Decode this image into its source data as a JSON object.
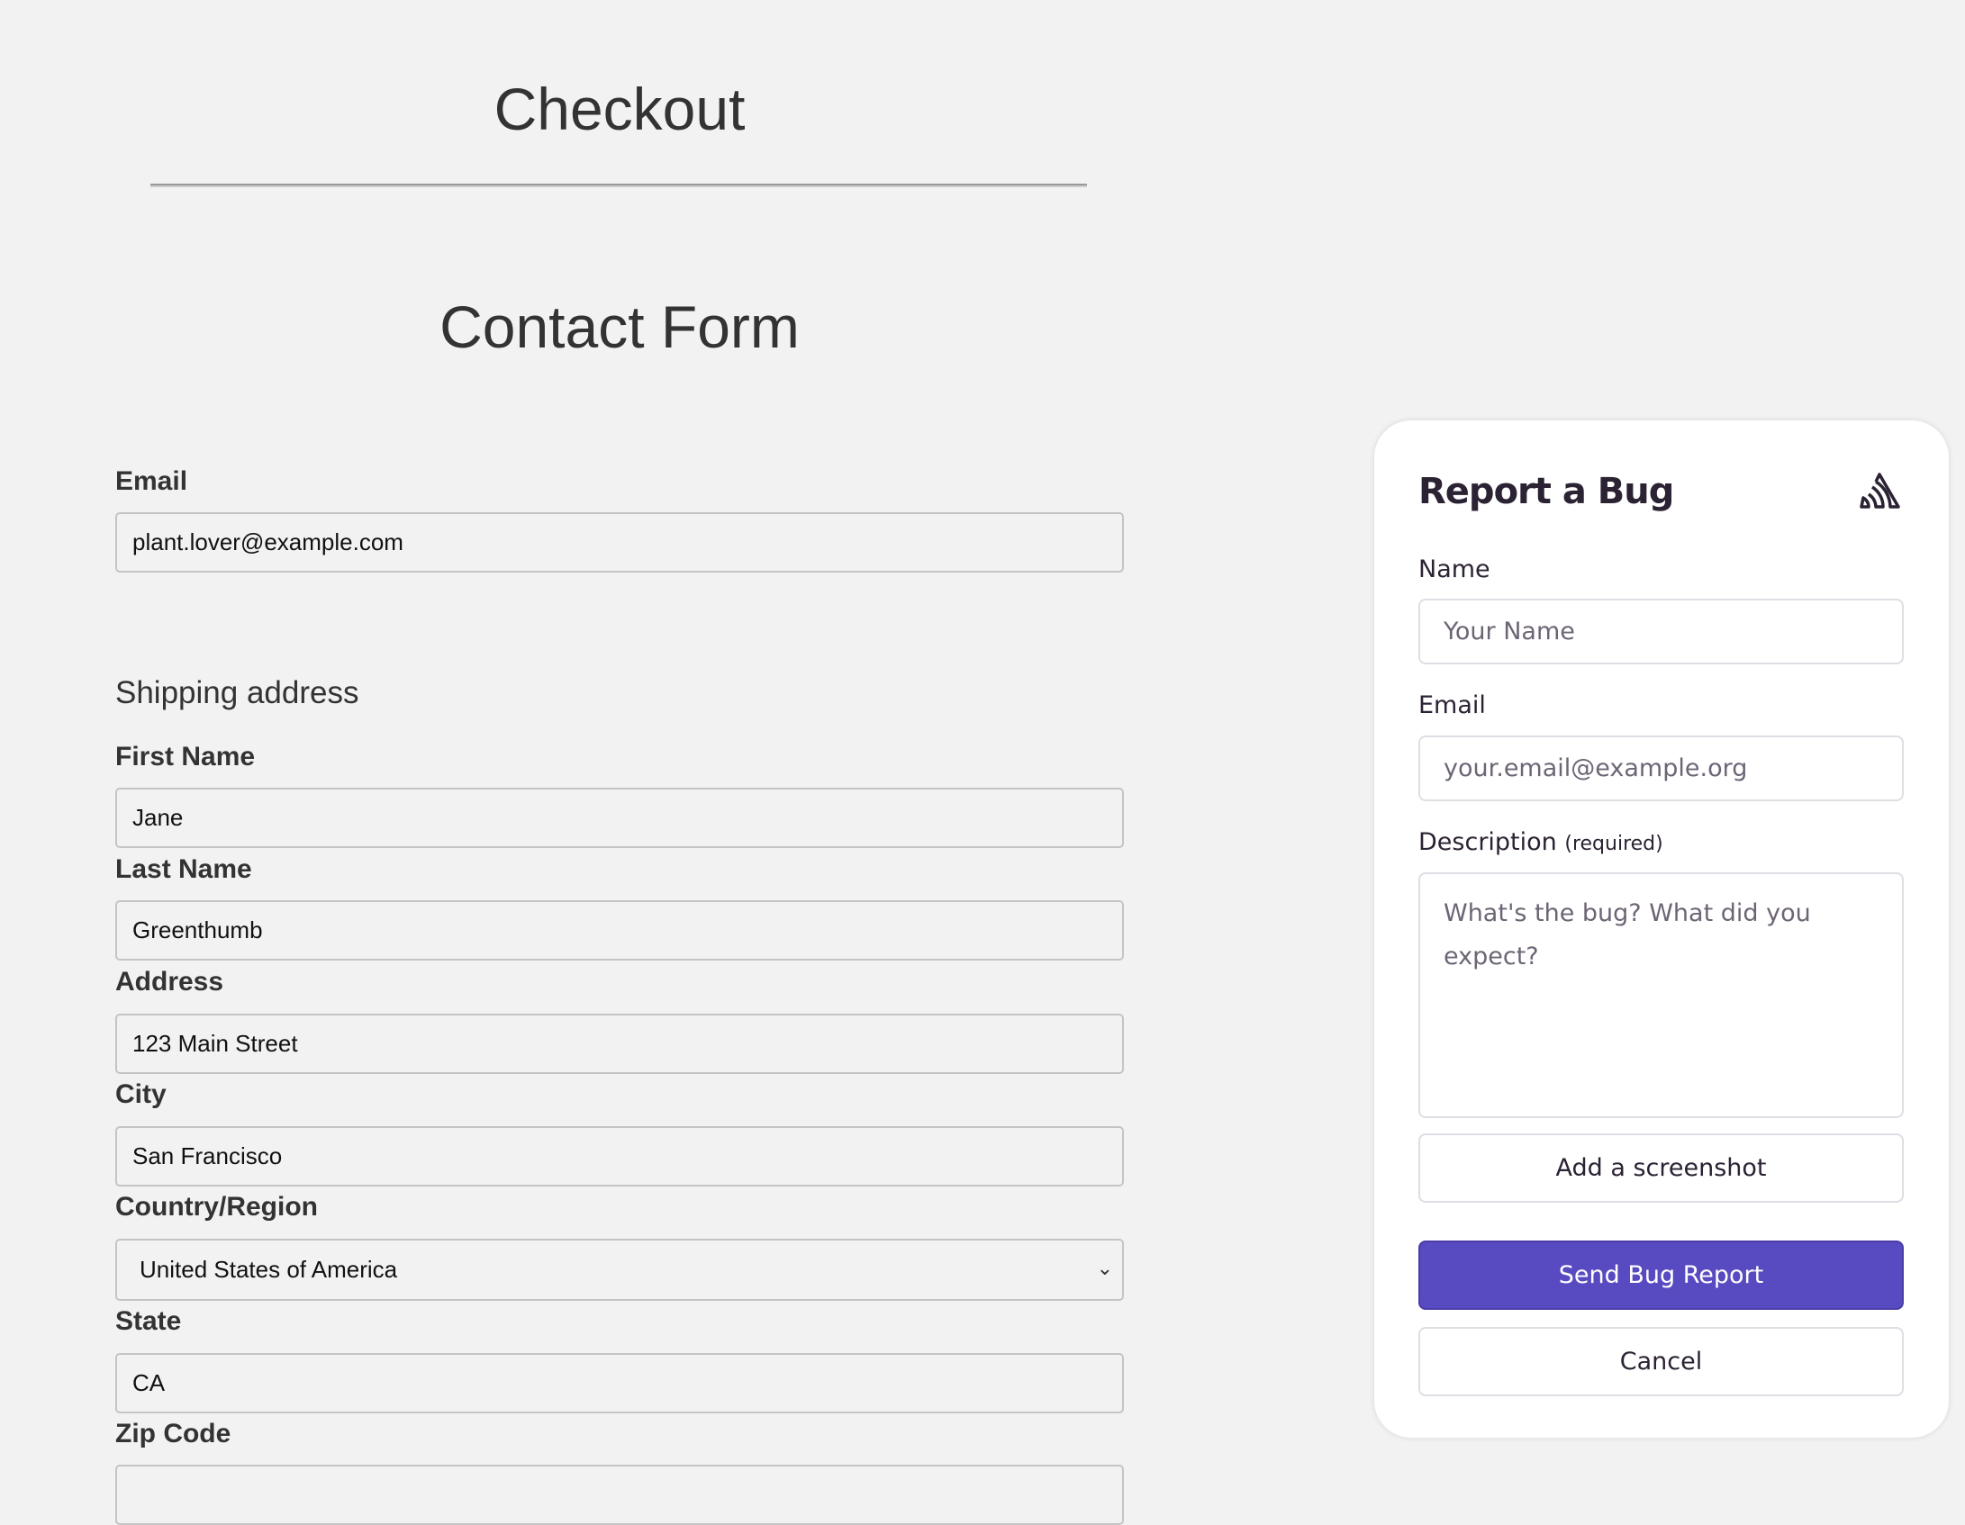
{
  "page": {
    "title": "Checkout",
    "subtitle": "Contact Form",
    "email": {
      "label": "Email",
      "value": "plant.lover@example.com"
    },
    "shipping_heading": "Shipping address",
    "fields": [
      {
        "label": "First Name",
        "value": "Jane"
      },
      {
        "label": "Last Name",
        "value": "Greenthumb"
      },
      {
        "label": "Address",
        "value": "123 Main Street"
      },
      {
        "label": "City",
        "value": "San Francisco"
      },
      {
        "label": "Country/Region",
        "value": "United States of America"
      },
      {
        "label": "State",
        "value": "CA"
      },
      {
        "label": "Zip Code",
        "value": ""
      }
    ]
  },
  "bug_report": {
    "title": "Report a Bug",
    "logo_icon": "sentry-logo-icon",
    "name_label": "Name",
    "name_placeholder": "Your Name",
    "email_label": "Email",
    "email_placeholder": "your.email@example.org",
    "description_label": "Description",
    "description_required": "(required)",
    "description_placeholder": "What's the bug? What did you expect?",
    "screenshot_button": "Add a screenshot",
    "send_button": "Send Bug Report",
    "cancel_button": "Cancel",
    "accent_color": "#584ac0"
  }
}
